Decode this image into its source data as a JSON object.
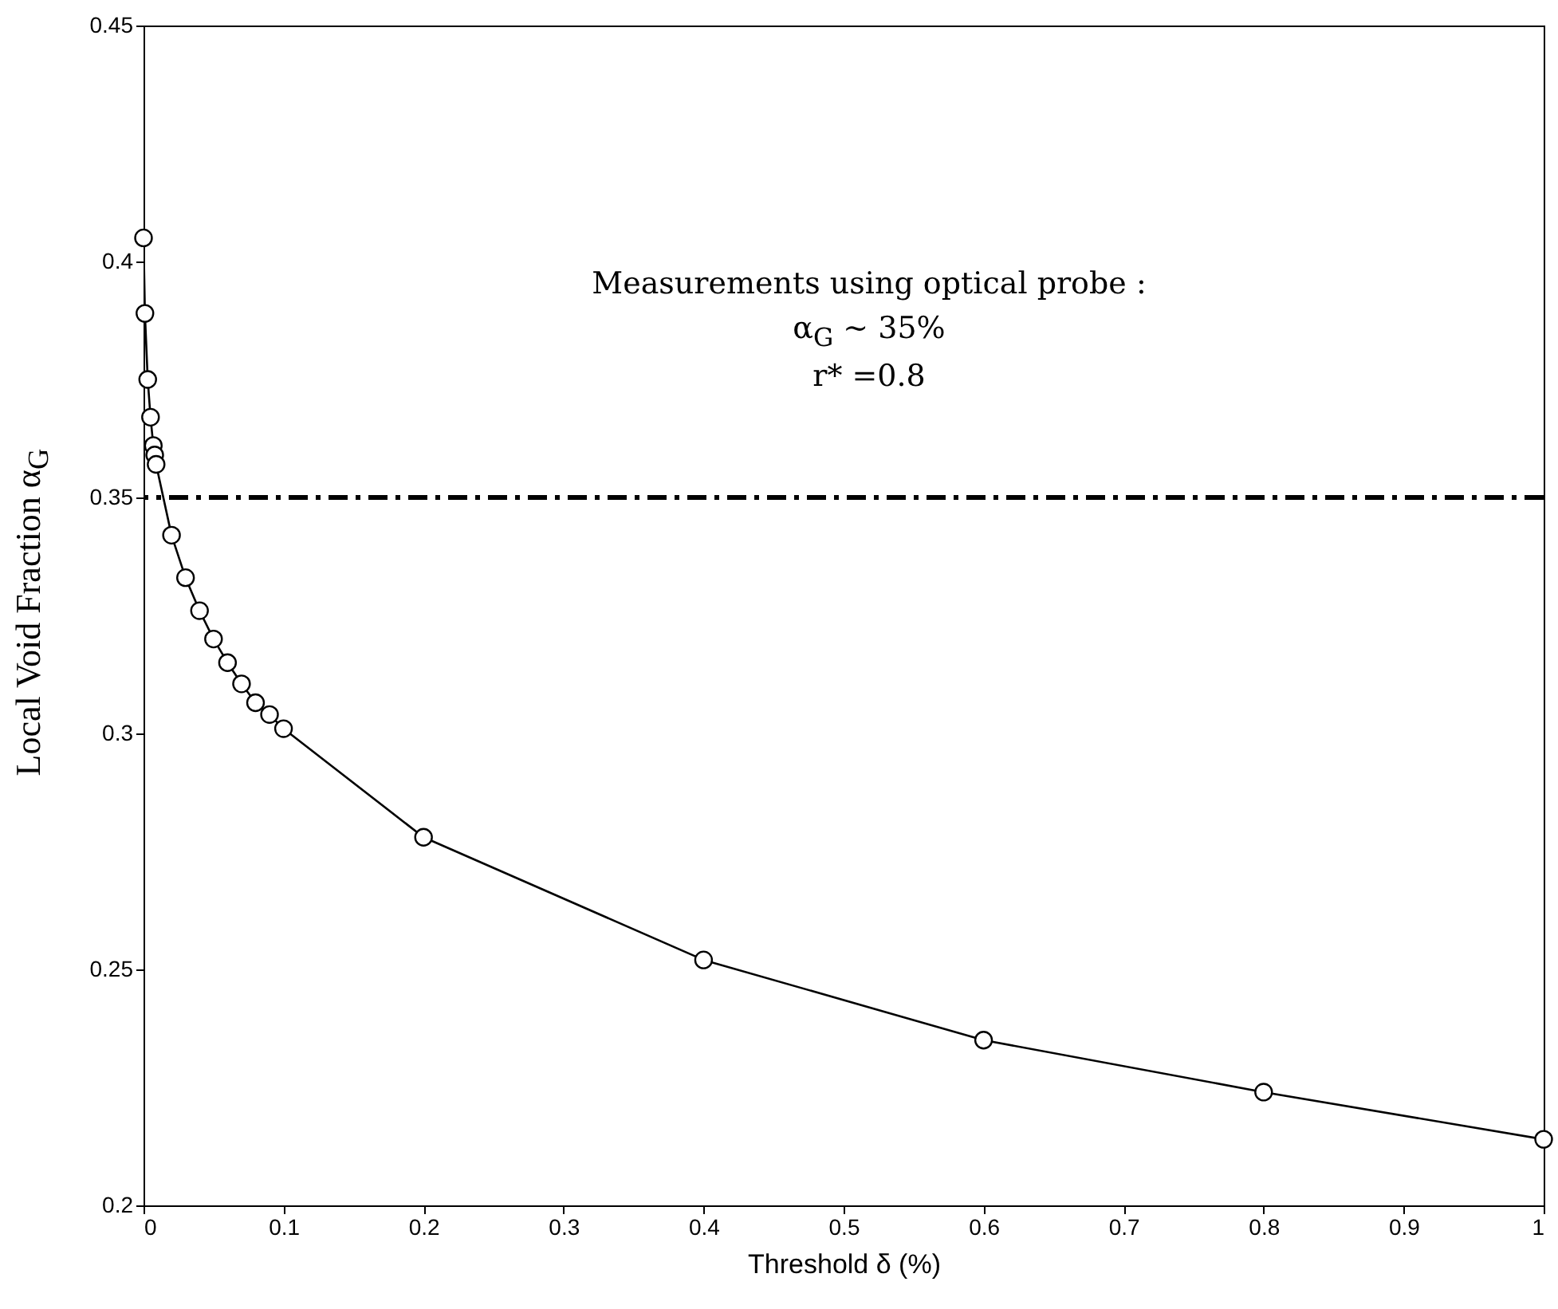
{
  "chart_data": {
    "type": "line",
    "x": [
      0,
      0.001,
      0.003,
      0.005,
      0.007,
      0.008,
      0.009,
      0.02,
      0.03,
      0.04,
      0.05,
      0.06,
      0.07,
      0.08,
      0.09,
      0.1,
      0.2,
      0.4,
      0.6,
      0.8,
      1
    ],
    "series": [
      {
        "color": "#000000",
        "values": [
          0.405,
          0.389,
          0.375,
          0.367,
          0.361,
          0.359,
          0.357,
          0.342,
          0.333,
          0.326,
          0.32,
          0.315,
          0.3105,
          0.3065,
          0.304,
          0.301,
          0.278,
          0.252,
          0.235,
          0.224,
          0.214
        ]
      }
    ],
    "marker": "circle",
    "line_style": "solid",
    "xlim": [
      0,
      1
    ],
    "ylim": [
      0.2,
      0.45
    ],
    "xticks": [
      0,
      0.1,
      0.2,
      0.3,
      0.4,
      0.5,
      0.6,
      0.7,
      0.8,
      0.9,
      1
    ],
    "yticks": [
      0.2,
      0.25,
      0.3,
      0.35,
      0.4,
      0.45
    ],
    "xlabel": "Threshold δ (%)",
    "ylabel": "Local Void Fraction α$_{G}$",
    "ref_lines": [
      {
        "axis": "y",
        "value": 0.35,
        "color": "#000000",
        "line_style": "dashdot"
      }
    ],
    "annotations": [
      "Measurements using optical probe :",
      "α$_{G}$ ~ 35%",
      "r* =0.8"
    ]
  }
}
